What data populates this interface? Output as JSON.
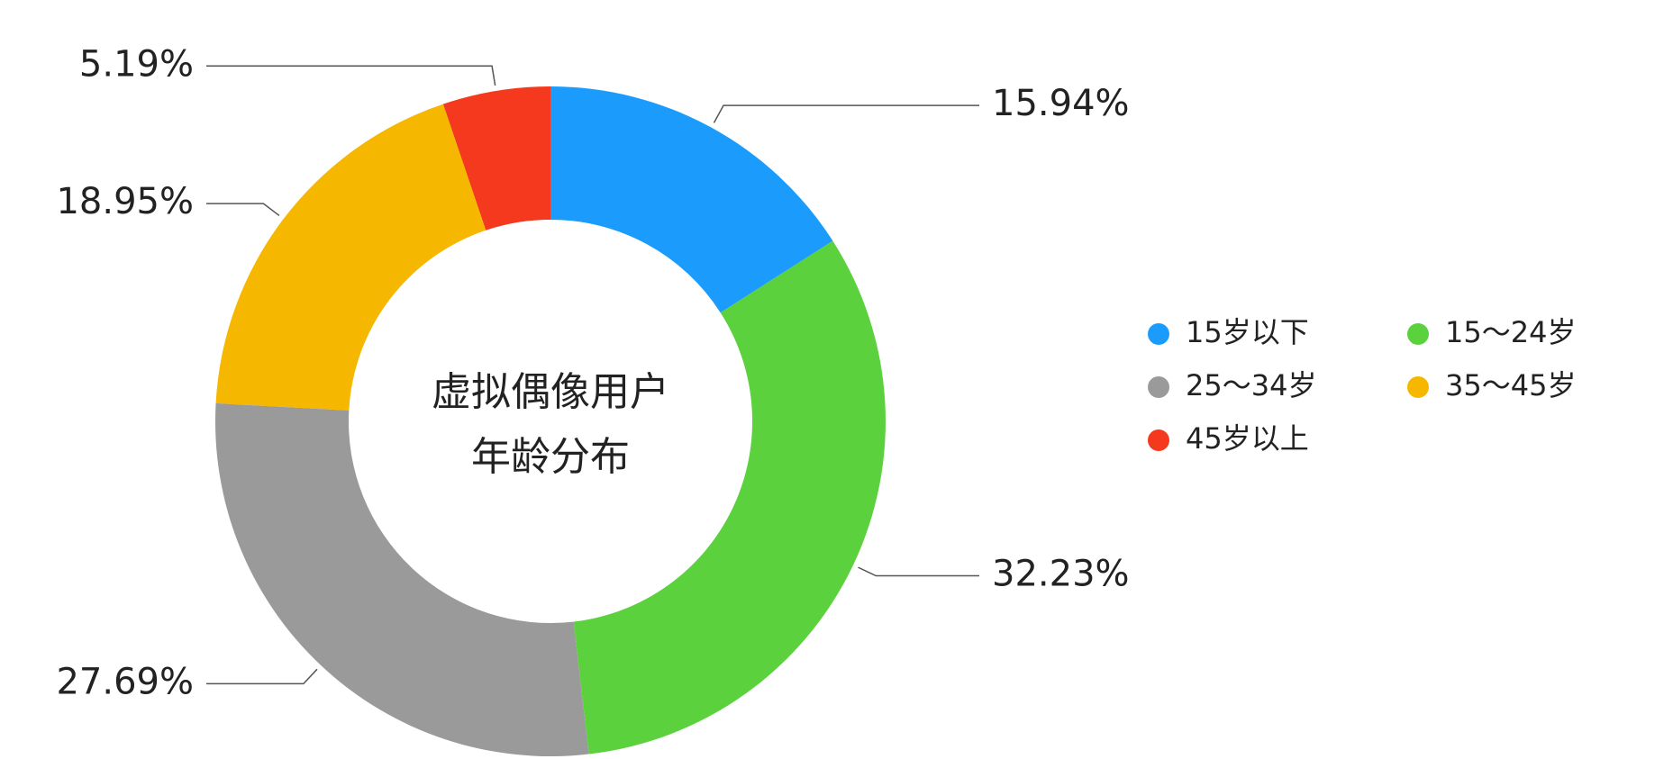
{
  "chart_data": {
    "type": "donut",
    "center_text": [
      "虚拟偶像用户",
      "年龄分布"
    ],
    "categories": [
      "15岁以下",
      "15～24岁",
      "25～34岁",
      "35～45岁",
      "45岁以上"
    ],
    "values": [
      15.94,
      32.23,
      27.69,
      18.95,
      5.19
    ],
    "value_labels": [
      "15.94%",
      "32.23%",
      "27.69%",
      "18.95%",
      "5.19%"
    ],
    "colors": [
      "#1b9cfc",
      "#5cd13e",
      "#9a9a9a",
      "#f5b700",
      "#f5391e"
    ],
    "legend": "right"
  }
}
